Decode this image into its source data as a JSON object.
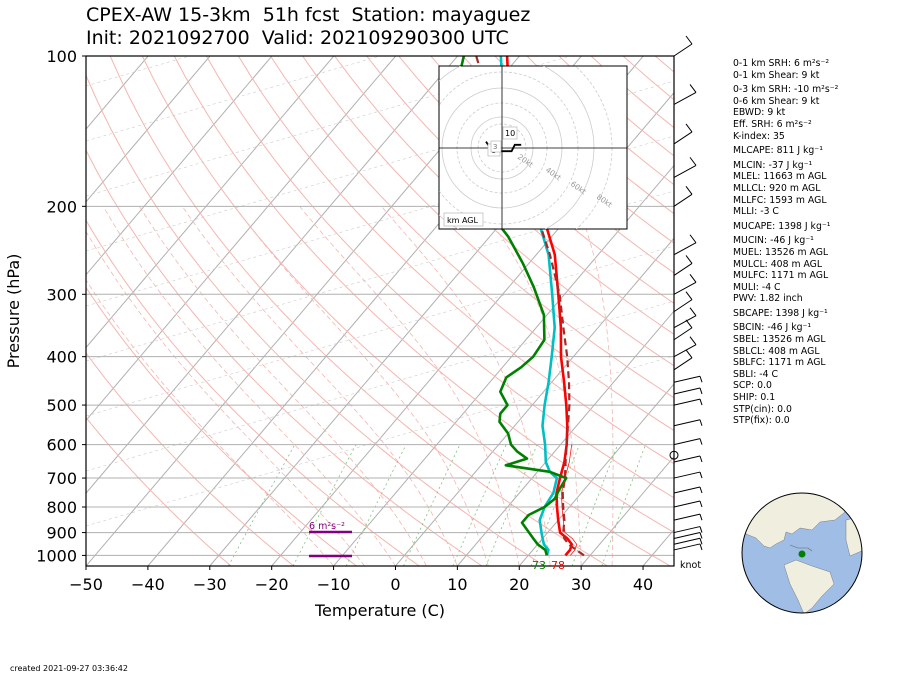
{
  "title": {
    "line1": "CPEX-AW 15-3km  51h fcst  Station: mayaguez",
    "line2": "Init: 2021092700  Valid: 202109290300 UTC"
  },
  "axes": {
    "xlabel": "Temperature (C)",
    "ylabel": "Pressure (hPa)",
    "xticks": [
      "−50",
      "−40",
      "−30",
      "−20",
      "−10",
      "0",
      "10",
      "20",
      "30",
      "40"
    ],
    "yticks": [
      "100",
      "200",
      "300",
      "400",
      "500",
      "600",
      "700",
      "800",
      "900",
      "1000"
    ]
  },
  "hodograph": {
    "rings": [
      "20kt",
      "40kt",
      "60kt",
      "80kt"
    ],
    "labels": [
      "10",
      "6",
      "3"
    ],
    "corner_label": "km AGL"
  },
  "srh_bar_label": "6 m²s⁻²",
  "surface_labels": {
    "dewpoint": "73",
    "temperature": "78"
  },
  "wind_unit": "knot",
  "indices": [
    "0-1 km SRH: 6 m²s⁻²",
    "0-1 km Shear: 9 kt",
    "0-3 km SRH: -10 m²s⁻²",
    "0-6 km Shear: 9 kt",
    "EBWD: 9 kt",
    "Eff. SRH: 6 m²s⁻²",
    "K-index: 35",
    "MLCAPE: 811 J kg⁻¹",
    "MLCIN: -37 J kg⁻¹",
    "MLEL: 11663 m AGL",
    "MLLCL: 920 m AGL",
    "MLLFC: 1593 m AGL",
    "MLLI: -3 C",
    "MUCAPE: 1398 J kg⁻¹",
    "MUCIN: -46 J kg⁻¹",
    "MUEL: 13526 m AGL",
    "MULCL: 408 m AGL",
    "MULFC: 1171 m AGL",
    "MULI: -4 C",
    "PWV: 1.82 inch",
    "SBCAPE: 1398 J kg⁻¹",
    "SBCIN: -46 J kg⁻¹",
    "SBEL: 13526 m AGL",
    "SBLCL: 408 m AGL",
    "SBLFC: 1171 m AGL",
    "SBLI: -4 C",
    "SCP: 0.0",
    "SHIP: 0.1",
    "STP(cin): 0.0",
    "STP(fix): 0.0"
  ],
  "created": "created 2021-09-27 03:36:42",
  "chart_data": {
    "type": "line",
    "title": "CPEX-AW 15-3km  51h fcst  Station: mayaguez",
    "subtitle": "Init: 2021092700  Valid: 202109290300 UTC",
    "xlabel": "Temperature (C)",
    "ylabel": "Pressure (hPa)",
    "xlim": [
      -50,
      45
    ],
    "ylim": [
      1050,
      100
    ],
    "y_scale": "log",
    "skew": true,
    "series": [
      {
        "color": "#ff0000",
        "points": [
          [
            1000,
            26
          ],
          [
            975,
            26
          ],
          [
            950,
            25.5
          ],
          [
            925,
            24
          ],
          [
            900,
            22
          ],
          [
            850,
            20
          ],
          [
            800,
            18
          ],
          [
            750,
            16
          ],
          [
            700,
            14.5
          ],
          [
            650,
            13
          ],
          [
            600,
            11
          ],
          [
            550,
            8.5
          ],
          [
            500,
            5.5
          ],
          [
            450,
            2
          ],
          [
            400,
            -2
          ],
          [
            350,
            -6
          ],
          [
            300,
            -11
          ],
          [
            250,
            -17
          ],
          [
            200,
            -26
          ],
          [
            175,
            -31
          ],
          [
            150,
            -37.5
          ],
          [
            125,
            -45
          ],
          [
            100,
            -52
          ]
        ]
      },
      {
        "color": "#00bfc4",
        "points": [
          [
            1000,
            23
          ],
          [
            975,
            22.5
          ],
          [
            950,
            21
          ],
          [
            925,
            20
          ],
          [
            900,
            19
          ],
          [
            850,
            17
          ],
          [
            800,
            16
          ],
          [
            750,
            15.5
          ],
          [
            700,
            14
          ],
          [
            680,
            12
          ],
          [
            650,
            10
          ],
          [
            600,
            7.5
          ],
          [
            550,
            4.5
          ],
          [
            500,
            2
          ],
          [
            450,
            -0.5
          ],
          [
            400,
            -3.5
          ],
          [
            350,
            -7
          ],
          [
            300,
            -12
          ],
          [
            250,
            -18
          ],
          [
            200,
            -27
          ],
          [
            175,
            -32
          ],
          [
            150,
            -38.5
          ],
          [
            125,
            -46
          ],
          [
            100,
            -53
          ]
        ]
      },
      {
        "color": "#008000",
        "points": [
          [
            1000,
            23
          ],
          [
            975,
            22
          ],
          [
            950,
            20
          ],
          [
            925,
            18.5
          ],
          [
            900,
            17
          ],
          [
            860,
            14.5
          ],
          [
            830,
            14.5
          ],
          [
            800,
            16
          ],
          [
            770,
            16.5
          ],
          [
            740,
            16
          ],
          [
            700,
            15.5
          ],
          [
            680,
            12
          ],
          [
            660,
            4
          ],
          [
            640,
            6.5
          ],
          [
            620,
            4
          ],
          [
            600,
            2
          ],
          [
            570,
            0
          ],
          [
            540,
            -3
          ],
          [
            520,
            -4
          ],
          [
            500,
            -4
          ],
          [
            470,
            -7
          ],
          [
            440,
            -8
          ],
          [
            420,
            -7
          ],
          [
            400,
            -6.5
          ],
          [
            370,
            -7
          ],
          [
            330,
            -10.5
          ],
          [
            290,
            -16
          ],
          [
            260,
            -21
          ],
          [
            230,
            -27
          ],
          [
            200,
            -35
          ],
          [
            180,
            -38
          ],
          [
            160,
            -42
          ],
          [
            140,
            -48
          ],
          [
            120,
            -55
          ],
          [
            100,
            -59
          ]
        ]
      },
      {
        "color": "#a52a2a",
        "dashed": true,
        "points": [
          [
            1000,
            29
          ],
          [
            975,
            27
          ],
          [
            950,
            25
          ],
          [
            925,
            23.5
          ],
          [
            900,
            22.5
          ],
          [
            850,
            21
          ],
          [
            800,
            19
          ],
          [
            750,
            17
          ],
          [
            700,
            15.3
          ],
          [
            650,
            13.2
          ],
          [
            600,
            11
          ],
          [
            550,
            8.6
          ],
          [
            500,
            6
          ],
          [
            450,
            2.8
          ],
          [
            400,
            -1
          ],
          [
            350,
            -5.6
          ],
          [
            300,
            -10.8
          ],
          [
            250,
            -17.8
          ],
          [
            200,
            -27
          ],
          [
            175,
            -33
          ],
          [
            150,
            -40
          ],
          [
            125,
            -48
          ],
          [
            100,
            -57
          ]
        ]
      }
    ],
    "hodograph_points": [
      [
        -5,
        2
      ],
      [
        -3,
        -1
      ],
      [
        0,
        -1
      ],
      [
        3,
        -1
      ],
      [
        4,
        1
      ],
      [
        6,
        1
      ]
    ],
    "wind_barbs_pressure": [
      100,
      125,
      150,
      175,
      200,
      250,
      275,
      300,
      325,
      350,
      370,
      400,
      425,
      450,
      475,
      500,
      550,
      600,
      650,
      700,
      750,
      800,
      850,
      900,
      925,
      950,
      975
    ]
  }
}
